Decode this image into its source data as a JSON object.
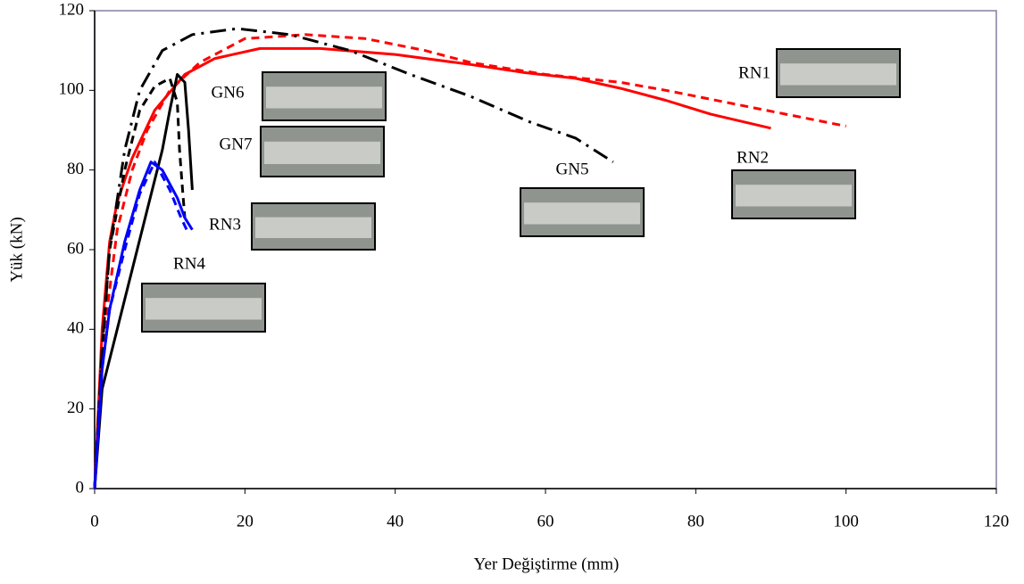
{
  "chart_data": {
    "type": "line",
    "x_label": "Yer Değiştirme (mm)",
    "y_label": "Yük (kN)",
    "xlim": [
      0,
      120
    ],
    "xticks": [
      0,
      20,
      40,
      60,
      80,
      100,
      120
    ],
    "ylim": [
      0,
      120
    ],
    "yticks": [
      0,
      20,
      40,
      60,
      80,
      100,
      120
    ],
    "series": [
      {
        "name": "RN1",
        "color": "#ff0000",
        "style": "dashed",
        "x": [
          0,
          1,
          3,
          5,
          7,
          10,
          14,
          20,
          28,
          36,
          44,
          50,
          60,
          70,
          76,
          84,
          92,
          100
        ],
        "values": [
          0,
          35,
          65,
          80,
          90,
          100,
          107,
          113,
          114,
          113,
          110,
          107,
          104,
          102,
          100,
          97,
          94,
          91
        ]
      },
      {
        "name": "RN2",
        "color": "#ff0000",
        "style": "solid",
        "x": [
          0,
          1,
          2,
          3,
          5,
          8,
          12,
          16,
          22,
          30,
          40,
          50,
          57,
          64,
          70,
          76,
          82,
          90
        ],
        "values": [
          0,
          40,
          62,
          72,
          83,
          95,
          104,
          108,
          110.5,
          110.5,
          109,
          106.5,
          104.5,
          103,
          100.5,
          97.5,
          94,
          90.5
        ]
      },
      {
        "name": "GN5",
        "color": "#000000",
        "style": "dashdot",
        "x": [
          0,
          1,
          2,
          4,
          6,
          9,
          13,
          19,
          26,
          34,
          42,
          50,
          58,
          64,
          69
        ],
        "values": [
          0,
          35,
          60,
          85,
          100,
          110,
          114,
          115.5,
          114,
          110,
          104,
          98.5,
          92,
          88,
          82
        ]
      },
      {
        "name": "GN6",
        "color": "#000000",
        "style": "solid",
        "x": [
          0,
          1,
          3,
          5,
          7,
          9,
          10,
          11,
          12,
          12.5,
          13
        ],
        "values": [
          0,
          25,
          40,
          55,
          70,
          85,
          95,
          104,
          102,
          90,
          75
        ]
      },
      {
        "name": "GN7",
        "color": "#000000",
        "style": "dashed",
        "x": [
          0,
          1,
          2,
          4,
          6,
          8,
          10,
          11,
          11.3,
          11.7,
          12
        ],
        "values": [
          0,
          35,
          60,
          80,
          95,
          101,
          103,
          97,
          85,
          75,
          68
        ]
      },
      {
        "name": "RN3",
        "color": "#0000ff",
        "style": "solid",
        "x": [
          0,
          1,
          2,
          4,
          6,
          7.5,
          9,
          11,
          12,
          13
        ],
        "values": [
          0,
          30,
          45,
          62,
          75,
          82,
          80,
          73,
          68,
          65
        ]
      },
      {
        "name": "RN4",
        "color": "#0000ff",
        "style": "dashed",
        "x": [
          0,
          1,
          2,
          4,
          6,
          8,
          10,
          11.5,
          12.5
        ],
        "values": [
          0,
          30,
          45,
          60,
          74,
          82,
          75,
          68,
          64
        ]
      }
    ]
  }
}
